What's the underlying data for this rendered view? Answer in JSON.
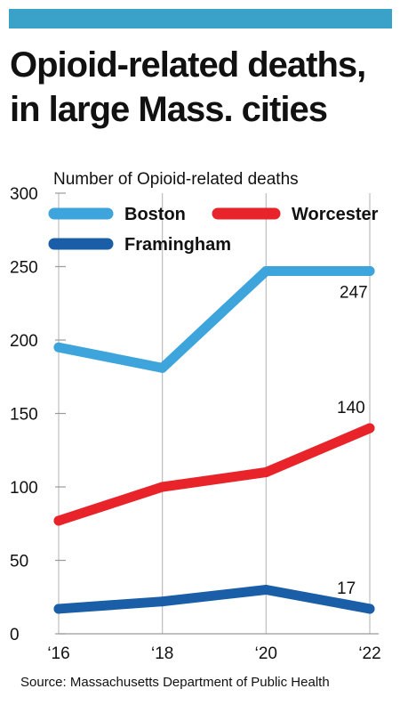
{
  "header": {
    "title_line1": "Opioid-related deaths,",
    "title_line2": "in large Mass. cities"
  },
  "source": "Source: Massachusetts Department of Public Health",
  "colors": {
    "top_bar": "#3aa1c9",
    "Boston": "#3da4dc",
    "Worcester": "#e8232a",
    "Framingham": "#1a5ea8"
  },
  "chart_data": {
    "type": "line",
    "ylabel": "Number of Opioid-related deaths",
    "xlabel": "",
    "categories": [
      "‘16",
      "‘18",
      "‘20",
      "‘22"
    ],
    "ylim": [
      0,
      300
    ],
    "yticks": [
      0,
      50,
      100,
      150,
      200,
      250,
      300
    ],
    "grid": "vertical",
    "legend_position": "top",
    "series": [
      {
        "name": "Boston",
        "values": [
          195,
          181,
          247,
          247
        ]
      },
      {
        "name": "Worcester",
        "values": [
          77,
          100,
          110,
          140
        ]
      },
      {
        "name": "Framingham",
        "values": [
          17,
          22,
          30,
          17
        ]
      }
    ],
    "annotations": [
      {
        "series": "Boston",
        "index": 3,
        "text": "247"
      },
      {
        "series": "Worcester",
        "index": 3,
        "text": "140"
      },
      {
        "series": "Framingham",
        "index": 3,
        "text": "17"
      }
    ]
  }
}
